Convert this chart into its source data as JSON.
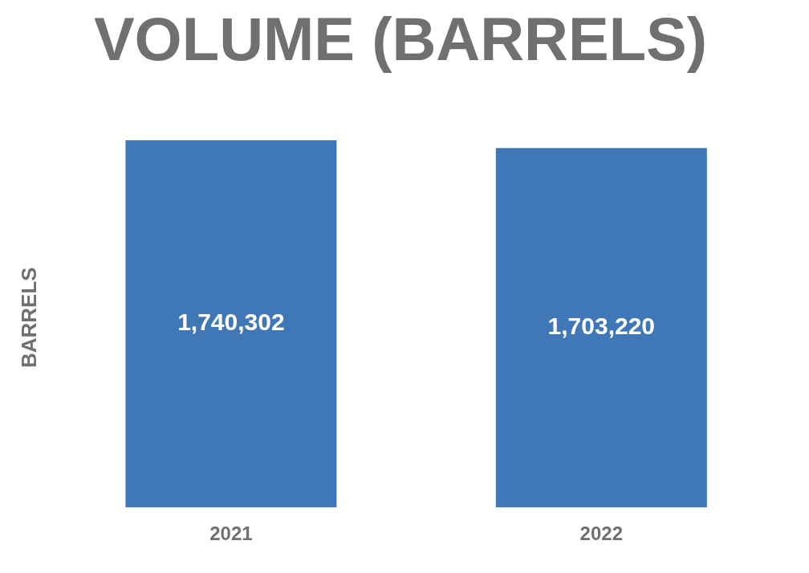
{
  "chart_data": {
    "type": "bar",
    "title": "VOLUME (BARRELS)",
    "ylabel": "BARRELS",
    "categories": [
      "2021",
      "2022"
    ],
    "values": [
      1740302,
      1703220
    ],
    "value_labels": [
      "1,740,302",
      "1,703,220"
    ],
    "color": "#3f77b7",
    "tick_labels": "x",
    "grid": false,
    "legend": false
  }
}
